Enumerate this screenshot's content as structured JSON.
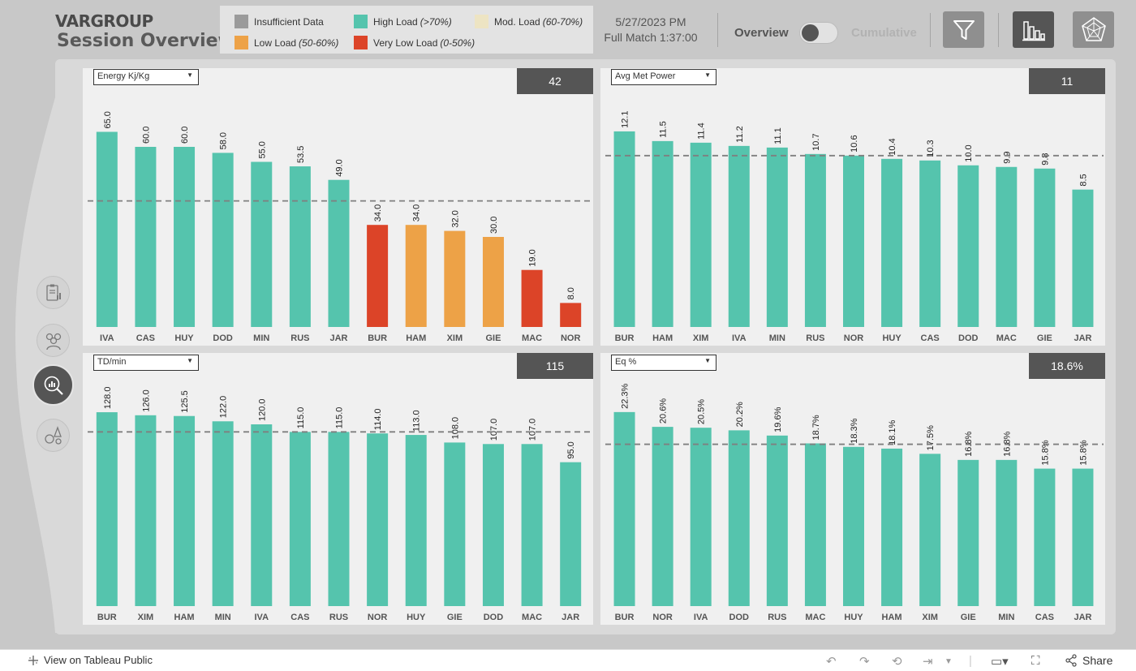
{
  "header": {
    "logo": "VARGROUP",
    "title": "Session Overview",
    "date": "5/27/2023 PM",
    "match": "Full Match 1:37:00",
    "toggle_left": "Overview",
    "toggle_right": "Cumulative"
  },
  "legend": [
    {
      "label": "Insufficient Data",
      "range": "",
      "color": "#9b9b9b"
    },
    {
      "label": "High Load",
      "range": "(>70%)",
      "color": "#55c4ad"
    },
    {
      "label": "Mod. Load",
      "range": "(60-70%)",
      "color": "#ede4c3"
    },
    {
      "label": "Low Load",
      "range": "(50-60%)",
      "color": "#eda247"
    },
    {
      "label": "Very Low Load",
      "range": "(0-50%)",
      "color": "#dc4428"
    }
  ],
  "header_buttons": [
    {
      "name": "filter-icon",
      "color": "#8f8f8f"
    },
    {
      "name": "bar-chart-icon",
      "color": "#555555"
    },
    {
      "name": "radar-chart-icon",
      "color": "#8f8f8f"
    }
  ],
  "footer": {
    "tableau_link": "View on Tableau Public",
    "share": "Share"
  },
  "chart_data": [
    {
      "type": "bar",
      "metric": "Energy Kj/Kg",
      "kpi": "42",
      "decimals": 1,
      "suffix": "",
      "ylim": [
        0,
        70
      ],
      "reference": 42,
      "categories": [
        "IVA",
        "CAS",
        "HUY",
        "DOD",
        "MIN",
        "RUS",
        "JAR",
        "BUR",
        "HAM",
        "XIM",
        "GIE",
        "MAC",
        "NOR"
      ],
      "values": [
        65.0,
        60.0,
        60.0,
        58.0,
        55.0,
        53.5,
        49.0,
        34.0,
        34.0,
        32.0,
        30.0,
        19.0,
        8.0
      ],
      "colors": [
        "#55c4ad",
        "#55c4ad",
        "#55c4ad",
        "#55c4ad",
        "#55c4ad",
        "#55c4ad",
        "#55c4ad",
        "#dc4428",
        "#eda247",
        "#eda247",
        "#eda247",
        "#dc4428",
        "#dc4428"
      ]
    },
    {
      "type": "bar",
      "metric": "Avg Met Power",
      "kpi": "11",
      "decimals": 1,
      "suffix": "",
      "ylim": [
        0,
        13
      ],
      "reference": 10.6,
      "categories": [
        "BUR",
        "HAM",
        "XIM",
        "IVA",
        "MIN",
        "RUS",
        "NOR",
        "HUY",
        "CAS",
        "DOD",
        "MAC",
        "GIE",
        "JAR"
      ],
      "values": [
        12.1,
        11.5,
        11.4,
        11.2,
        11.1,
        10.7,
        10.6,
        10.4,
        10.3,
        10.0,
        9.9,
        9.8,
        8.5
      ],
      "colors": [
        "#55c4ad",
        "#55c4ad",
        "#55c4ad",
        "#55c4ad",
        "#55c4ad",
        "#55c4ad",
        "#55c4ad",
        "#55c4ad",
        "#55c4ad",
        "#55c4ad",
        "#55c4ad",
        "#55c4ad",
        "#55c4ad"
      ]
    },
    {
      "type": "bar",
      "metric": "TD/min",
      "kpi": "115",
      "decimals": 1,
      "suffix": "",
      "ylim": [
        0,
        135
      ],
      "reference": 115,
      "categories": [
        "BUR",
        "XIM",
        "HAM",
        "MIN",
        "IVA",
        "CAS",
        "RUS",
        "NOR",
        "HUY",
        "GIE",
        "DOD",
        "MAC",
        "JAR"
      ],
      "values": [
        128.0,
        126.0,
        125.5,
        122.0,
        120.0,
        115.0,
        115.0,
        114.0,
        113.0,
        108.0,
        107.0,
        107.0,
        95.0
      ],
      "colors": [
        "#55c4ad",
        "#55c4ad",
        "#55c4ad",
        "#55c4ad",
        "#55c4ad",
        "#55c4ad",
        "#55c4ad",
        "#55c4ad",
        "#55c4ad",
        "#55c4ad",
        "#55c4ad",
        "#55c4ad",
        "#55c4ad"
      ]
    },
    {
      "type": "bar",
      "metric": "Eq %",
      "kpi": "18.6%",
      "decimals": 1,
      "suffix": "%",
      "ylim": [
        0,
        23.5
      ],
      "reference": 18.6,
      "categories": [
        "BUR",
        "NOR",
        "IVA",
        "DOD",
        "RUS",
        "MAC",
        "HUY",
        "HAM",
        "XIM",
        "GIE",
        "MIN",
        "CAS",
        "JAR"
      ],
      "values": [
        22.3,
        20.6,
        20.5,
        20.2,
        19.6,
        18.7,
        18.3,
        18.1,
        17.5,
        16.8,
        16.8,
        15.8,
        15.8
      ],
      "colors": [
        "#55c4ad",
        "#55c4ad",
        "#55c4ad",
        "#55c4ad",
        "#55c4ad",
        "#55c4ad",
        "#55c4ad",
        "#55c4ad",
        "#55c4ad",
        "#55c4ad",
        "#55c4ad",
        "#55c4ad",
        "#55c4ad"
      ]
    }
  ]
}
